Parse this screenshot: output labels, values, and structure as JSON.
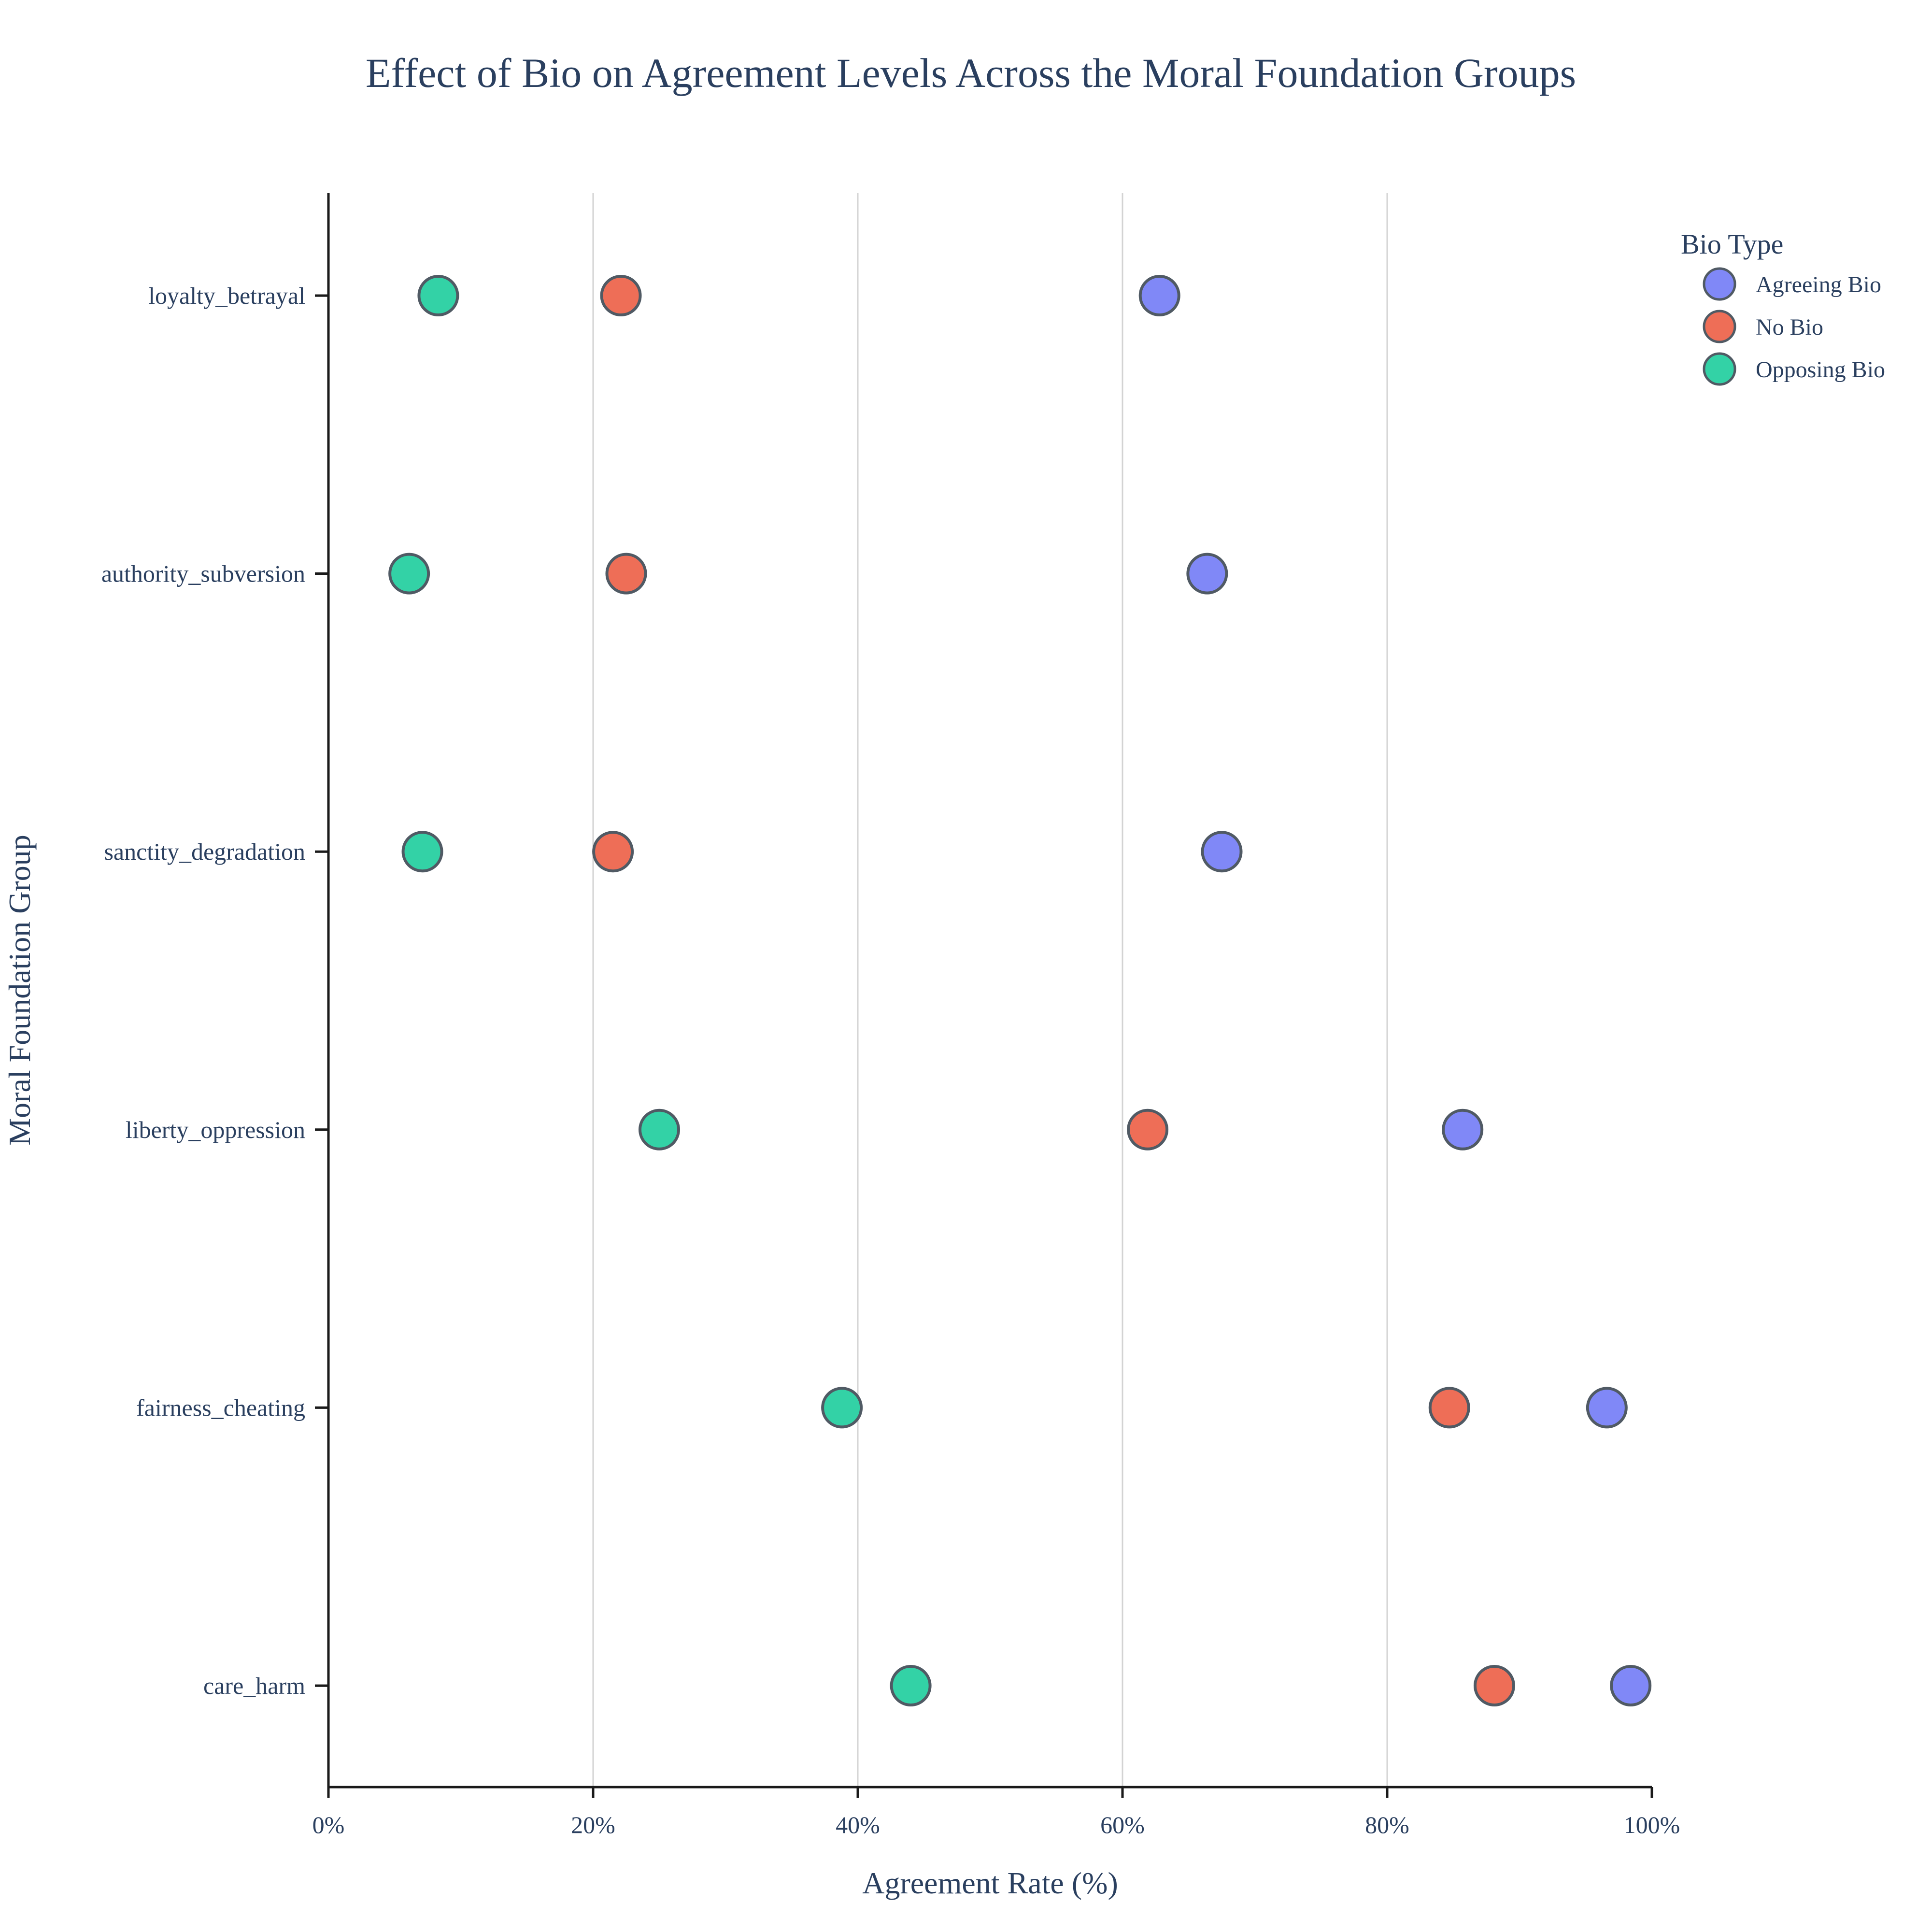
{
  "chart_data": {
    "type": "scatter",
    "title": "Effect of Bio on Agreement Levels Across the Moral Foundation Groups",
    "xlabel": "Agreement Rate (%)",
    "ylabel": "Moral Foundation Group",
    "xlim": [
      0,
      100
    ],
    "x_ticks": [
      0,
      20,
      40,
      60,
      80,
      100
    ],
    "x_tick_suffix": "%",
    "grid": "vertical",
    "categories": [
      "loyalty_betrayal",
      "authority_subversion",
      "sanctity_degradation",
      "liberty_oppression",
      "fairness_cheating",
      "care_harm"
    ],
    "legend": {
      "title": "Bio Type",
      "position": "top-right"
    },
    "series": [
      {
        "name": "Agreeing Bio",
        "color": "#8088f7",
        "values": [
          62.8,
          66.4,
          67.5,
          85.7,
          96.6,
          98.4
        ]
      },
      {
        "name": "No Bio",
        "color": "#ee6e57",
        "values": [
          22.1,
          22.5,
          21.5,
          61.9,
          84.7,
          88.1
        ]
      },
      {
        "name": "Opposing Bio",
        "color": "#33d2a6",
        "values": [
          8.3,
          6.1,
          7.1,
          25.0,
          38.8,
          44.0
        ]
      }
    ]
  }
}
